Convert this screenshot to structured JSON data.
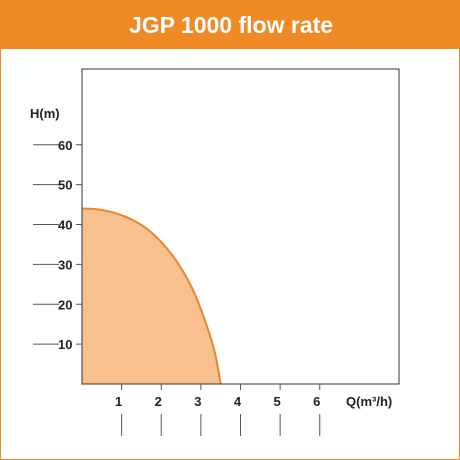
{
  "title": "JGP 1000 flow rate",
  "colors": {
    "accent": "#f08a24",
    "fill": "#f9c08f",
    "curve": "#e8862a",
    "frame": "#333333",
    "tick": "#555555"
  },
  "chart_data": {
    "type": "area",
    "title": "JGP 1000 flow rate",
    "xlabel": "Q(m³/h)",
    "ylabel": "H(m)",
    "x_ticks": [
      1,
      2,
      3,
      4,
      5,
      6
    ],
    "y_ticks": [
      10,
      20,
      30,
      40,
      50,
      60
    ],
    "xlim": [
      0,
      8
    ],
    "ylim": [
      0,
      79
    ],
    "grid": false,
    "series": [
      {
        "points": [
          [
            0,
            44.0
          ],
          [
            0.4,
            43.8
          ],
          [
            0.8,
            43.0
          ],
          [
            1.2,
            41.5
          ],
          [
            1.6,
            39.2
          ],
          [
            2.0,
            35.6
          ],
          [
            2.4,
            30.6
          ],
          [
            2.8,
            23.6
          ],
          [
            3.1,
            16.0
          ],
          [
            3.35,
            8.0
          ],
          [
            3.5,
            0
          ]
        ]
      }
    ]
  }
}
